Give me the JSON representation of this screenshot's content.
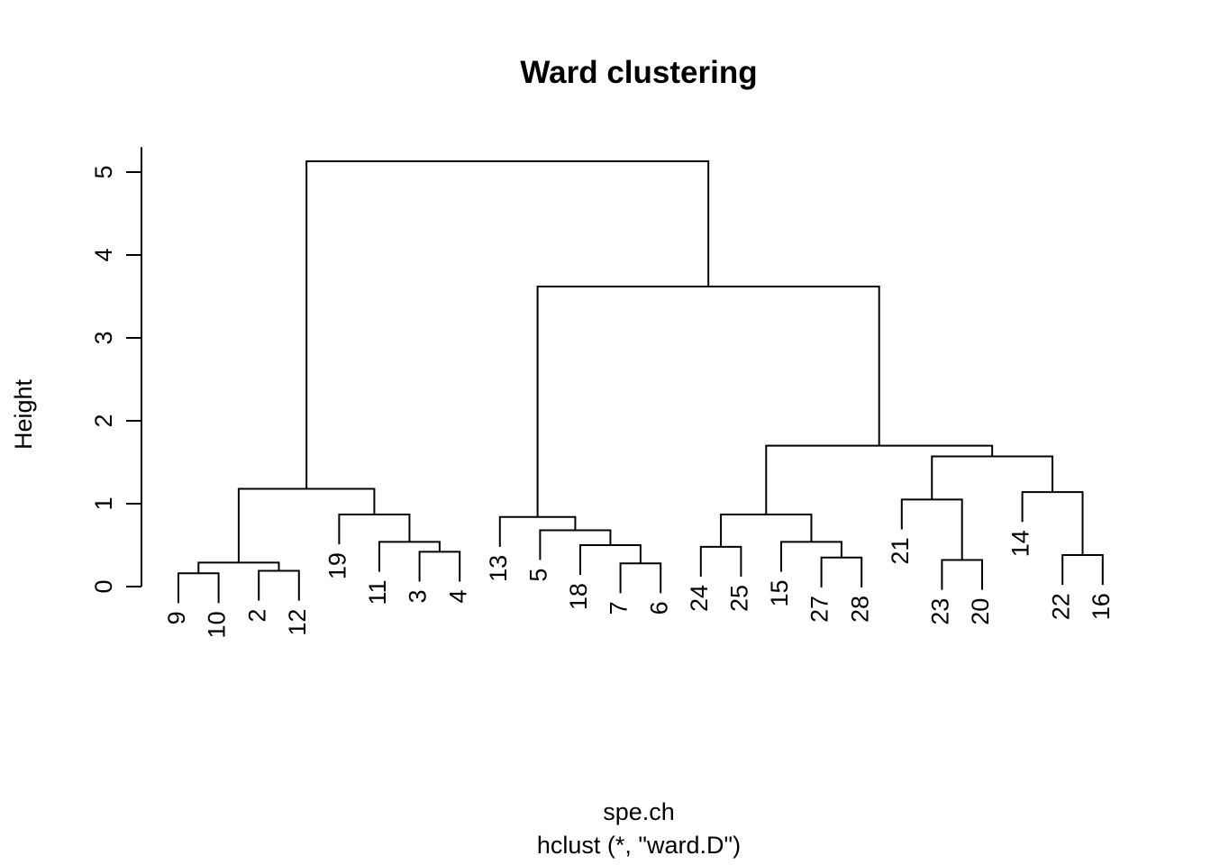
{
  "chart_data": {
    "type": "dendrogram",
    "title": "Ward clustering",
    "ylabel": "Height",
    "xlabel": "spe.ch",
    "sublabel": "hclust (*, \"ward.D\")",
    "ylim": [
      0,
      5.3
    ],
    "yticks": [
      "0",
      "1",
      "2",
      "3",
      "4",
      "5"
    ],
    "leaf_order": [
      "9",
      "10",
      "2",
      "12",
      "19",
      "11",
      "3",
      "4",
      "13",
      "5",
      "18",
      "7",
      "6",
      "24",
      "25",
      "15",
      "27",
      "28",
      "21",
      "23",
      "20",
      "14",
      "22",
      "16"
    ],
    "merges": [
      {
        "id": "m1",
        "left": "9",
        "right": "10",
        "height": 0.16
      },
      {
        "id": "m2",
        "left": "2",
        "right": "12",
        "height": 0.19
      },
      {
        "id": "m3",
        "left": "m1",
        "right": "m2",
        "height": 0.29
      },
      {
        "id": "m4",
        "left": "3",
        "right": "4",
        "height": 0.42
      },
      {
        "id": "m5",
        "left": "11",
        "right": "m4",
        "height": 0.54
      },
      {
        "id": "m6",
        "left": "19",
        "right": "m5",
        "height": 0.87
      },
      {
        "id": "m7",
        "left": "m3",
        "right": "m6",
        "height": 1.18
      },
      {
        "id": "m8",
        "left": "7",
        "right": "6",
        "height": 0.28
      },
      {
        "id": "m9",
        "left": "18",
        "right": "m8",
        "height": 0.5
      },
      {
        "id": "m10",
        "left": "5",
        "right": "m9",
        "height": 0.68
      },
      {
        "id": "m11",
        "left": "13",
        "right": "m10",
        "height": 0.84
      },
      {
        "id": "m12",
        "left": "24",
        "right": "25",
        "height": 0.48
      },
      {
        "id": "m13",
        "left": "27",
        "right": "28",
        "height": 0.35
      },
      {
        "id": "m14",
        "left": "15",
        "right": "m13",
        "height": 0.54
      },
      {
        "id": "m15",
        "left": "m12",
        "right": "m14",
        "height": 0.87
      },
      {
        "id": "m16",
        "left": "23",
        "right": "20",
        "height": 0.32
      },
      {
        "id": "m17",
        "left": "21",
        "right": "m16",
        "height": 1.05
      },
      {
        "id": "m18",
        "left": "22",
        "right": "16",
        "height": 0.38
      },
      {
        "id": "m19",
        "left": "14",
        "right": "m18",
        "height": 1.14
      },
      {
        "id": "m20",
        "left": "m17",
        "right": "m19",
        "height": 1.57
      },
      {
        "id": "m21",
        "left": "m15",
        "right": "m20",
        "height": 1.7
      },
      {
        "id": "m22",
        "left": "m11",
        "right": "m21",
        "height": 3.62
      },
      {
        "id": "m23",
        "left": "m7",
        "right": "m22",
        "height": 5.13
      }
    ]
  }
}
